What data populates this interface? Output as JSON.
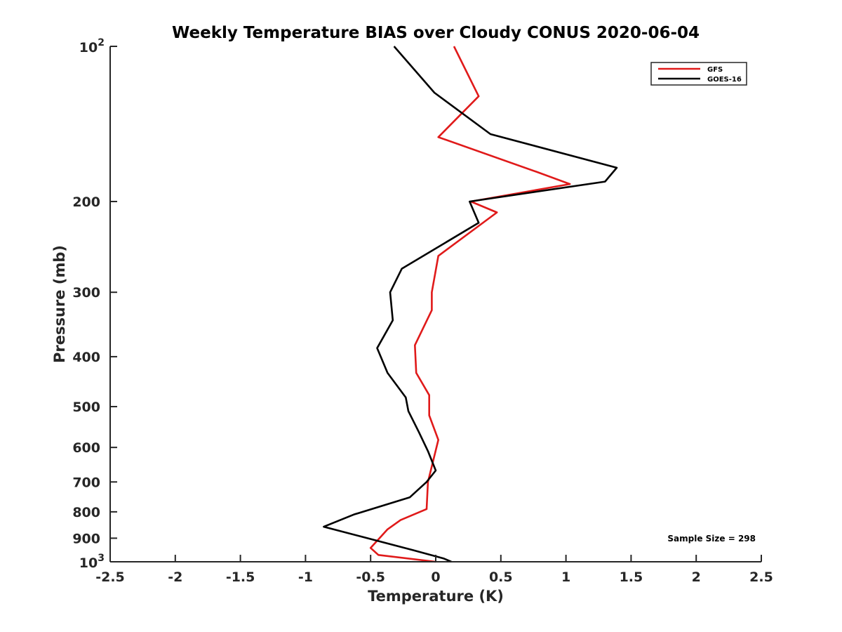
{
  "chart_data": {
    "type": "line",
    "title": "Weekly Temperature BIAS over Cloudy CONUS 2020-06-04",
    "xlabel": "Temperature (K)",
    "ylabel": "Pressure (mb)",
    "xlim": [
      -2.5,
      2.5
    ],
    "ylim": [
      100,
      1000
    ],
    "yscale": "log",
    "y_reversed": true,
    "grid": false,
    "x_ticks": [
      -2.5,
      -2,
      -1.5,
      -1,
      -0.5,
      0,
      0.5,
      1,
      1.5,
      2,
      2.5
    ],
    "x_tick_labels": [
      "-2.5",
      "-2",
      "-1.5",
      "-1",
      "-0.5",
      "0",
      "0.5",
      "1",
      "1.5",
      "2",
      "2.5"
    ],
    "y_ticks": [
      100,
      200,
      300,
      400,
      500,
      600,
      700,
      800,
      900,
      1000
    ],
    "y_tick_labels": [
      {
        "base": "10",
        "exp": "2"
      },
      {
        "base": "200"
      },
      {
        "base": "300"
      },
      {
        "base": "400"
      },
      {
        "base": "500"
      },
      {
        "base": "600"
      },
      {
        "base": "700"
      },
      {
        "base": "800"
      },
      {
        "base": "900"
      },
      {
        "base": "10",
        "exp": "3"
      }
    ],
    "legend_position": "top-right",
    "annotation": "Sample Size = 298",
    "series": [
      {
        "name": "GFS",
        "color": "#e01a1a",
        "points": [
          [
            0.14,
            100
          ],
          [
            0.33,
            125
          ],
          [
            0.02,
            150
          ],
          [
            0.77,
            175
          ],
          [
            1.03,
            185
          ],
          [
            0.27,
            200
          ],
          [
            0.47,
            210
          ],
          [
            0.02,
            255
          ],
          [
            -0.03,
            300
          ],
          [
            -0.03,
            325
          ],
          [
            -0.16,
            380
          ],
          [
            -0.15,
            430
          ],
          [
            -0.05,
            475
          ],
          [
            -0.05,
            520
          ],
          [
            0.02,
            580
          ],
          [
            -0.06,
            700
          ],
          [
            -0.07,
            790
          ],
          [
            -0.27,
            830
          ],
          [
            -0.37,
            865
          ],
          [
            -0.5,
            940
          ],
          [
            -0.44,
            970
          ],
          [
            0.0,
            1000
          ]
        ]
      },
      {
        "name": "GOES-16",
        "color": "#000000",
        "points": [
          [
            -0.32,
            100
          ],
          [
            -0.01,
            123
          ],
          [
            0.42,
            148
          ],
          [
            1.39,
            172
          ],
          [
            1.3,
            183
          ],
          [
            0.26,
            200
          ],
          [
            0.33,
            220
          ],
          [
            -0.26,
            270
          ],
          [
            -0.35,
            300
          ],
          [
            -0.33,
            340
          ],
          [
            -0.45,
            385
          ],
          [
            -0.37,
            430
          ],
          [
            -0.23,
            480
          ],
          [
            -0.21,
            510
          ],
          [
            -0.13,
            560
          ],
          [
            -0.06,
            610
          ],
          [
            0.0,
            665
          ],
          [
            -0.07,
            700
          ],
          [
            -0.2,
            750
          ],
          [
            -0.63,
            810
          ],
          [
            -0.86,
            855
          ],
          [
            -0.17,
            950
          ],
          [
            0.06,
            985
          ],
          [
            0.12,
            1000
          ]
        ]
      }
    ]
  }
}
